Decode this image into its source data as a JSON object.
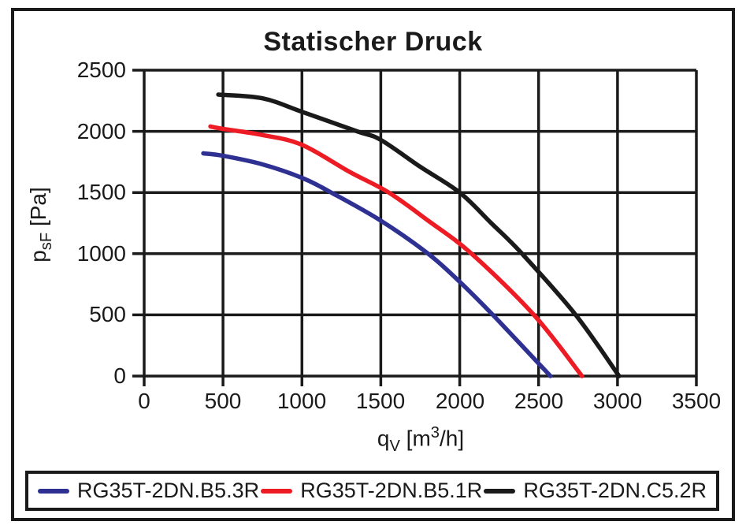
{
  "title": "Statischer Druck",
  "axis_titles": {
    "y": {
      "main": "p",
      "sub": "sF",
      "unit": " [Pa]"
    },
    "x": {
      "main": "q",
      "sub": "V",
      "unit_a": " [m",
      "sup": "3",
      "unit_b": "/h]"
    }
  },
  "chart_data": {
    "type": "line",
    "title": "Statischer Druck",
    "xlabel": "qV [m3/h]",
    "ylabel": "psF [Pa]",
    "xlim": [
      0,
      3500
    ],
    "ylim": [
      0,
      2500
    ],
    "x_ticks": [
      0,
      500,
      1000,
      1500,
      2000,
      2500,
      3000,
      3500
    ],
    "y_ticks": [
      0,
      500,
      1000,
      1500,
      2000,
      2500
    ],
    "grid": true,
    "legend_position": "bottom",
    "line_color_grid": "#1a1a1a",
    "series": [
      {
        "name": "RG35T-2DN.B5.3R",
        "color": "#2E3192",
        "points": [
          [
            375,
            1820
          ],
          [
            500,
            1800
          ],
          [
            750,
            1730
          ],
          [
            1000,
            1620
          ],
          [
            1200,
            1490
          ],
          [
            1500,
            1270
          ],
          [
            1800,
            1000
          ],
          [
            2000,
            770
          ],
          [
            2210,
            500
          ],
          [
            2575,
            0
          ]
        ]
      },
      {
        "name": "RG35T-2DN.B5.1R",
        "color": "#ED1C24",
        "points": [
          [
            420,
            2040
          ],
          [
            500,
            2020
          ],
          [
            750,
            1970
          ],
          [
            1000,
            1890
          ],
          [
            1300,
            1670
          ],
          [
            1550,
            1500
          ],
          [
            1800,
            1270
          ],
          [
            2075,
            1000
          ],
          [
            2470,
            500
          ],
          [
            2775,
            0
          ]
        ]
      },
      {
        "name": "RG35T-2DN.C5.2R",
        "color": "#1A1A1A",
        "points": [
          [
            470,
            2300
          ],
          [
            750,
            2270
          ],
          [
            1000,
            2160
          ],
          [
            1350,
            2000
          ],
          [
            1500,
            1930
          ],
          [
            1750,
            1710
          ],
          [
            2000,
            1500
          ],
          [
            2200,
            1250
          ],
          [
            2395,
            1000
          ],
          [
            2735,
            500
          ],
          [
            3010,
            0
          ]
        ]
      }
    ]
  }
}
